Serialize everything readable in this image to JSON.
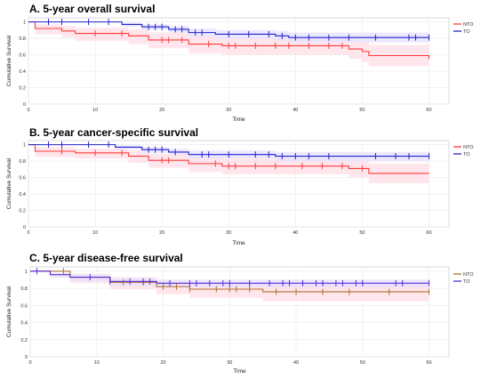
{
  "chart_data": [
    {
      "type": "line",
      "title": "A. 5-year overall survival",
      "xlabel": "Time",
      "ylabel": "Cumulative Survival",
      "xlim": [
        0,
        63
      ],
      "ylim": [
        0,
        1.05
      ],
      "x_ticks": [
        "0",
        "10",
        "20",
        "30",
        "40",
        "50",
        "60"
      ],
      "y_ticks": [
        "0",
        "0.2",
        "0.4",
        "0.6",
        "0.8",
        "1"
      ],
      "grid": true,
      "legend_position": "top-right",
      "series": [
        {
          "name": "NTO",
          "color": "#ff3b3b",
          "band_color": "#ffdde6",
          "steps": [
            [
              0,
              1.0
            ],
            [
              1,
              0.92
            ],
            [
              5,
              0.89
            ],
            [
              7,
              0.86
            ],
            [
              15,
              0.83
            ],
            [
              18,
              0.78
            ],
            [
              24,
              0.73
            ],
            [
              29,
              0.71
            ],
            [
              48,
              0.67
            ],
            [
              50,
              0.64
            ],
            [
              51,
              0.59
            ],
            [
              60,
              0.55
            ]
          ],
          "band_lower": [
            [
              0,
              1.0
            ],
            [
              1,
              0.85
            ],
            [
              5,
              0.81
            ],
            [
              7,
              0.77
            ],
            [
              15,
              0.73
            ],
            [
              18,
              0.68
            ],
            [
              24,
              0.62
            ],
            [
              29,
              0.6
            ],
            [
              48,
              0.55
            ],
            [
              50,
              0.51
            ],
            [
              51,
              0.46
            ],
            [
              60,
              0.42
            ]
          ],
          "band_upper": [
            [
              0,
              1.0
            ],
            [
              1,
              0.97
            ],
            [
              5,
              0.95
            ],
            [
              7,
              0.93
            ],
            [
              15,
              0.91
            ],
            [
              18,
              0.87
            ],
            [
              24,
              0.83
            ],
            [
              29,
              0.81
            ],
            [
              48,
              0.78
            ],
            [
              50,
              0.76
            ],
            [
              51,
              0.72
            ],
            [
              60,
              0.68
            ]
          ],
          "censored": [
            10,
            14,
            20,
            21,
            23,
            27,
            30,
            31,
            34,
            37,
            39,
            42,
            45,
            47
          ]
        },
        {
          "name": "TO",
          "color": "#2222cc",
          "band_color": "#e6e2ff",
          "steps": [
            [
              0,
              1.0
            ],
            [
              14,
              0.97
            ],
            [
              17,
              0.94
            ],
            [
              21,
              0.91
            ],
            [
              24,
              0.87
            ],
            [
              28,
              0.85
            ],
            [
              37,
              0.83
            ],
            [
              39,
              0.81
            ],
            [
              60,
              0.81
            ]
          ],
          "band_lower": [
            [
              0,
              1.0
            ],
            [
              14,
              0.94
            ],
            [
              17,
              0.9
            ],
            [
              21,
              0.87
            ],
            [
              24,
              0.82
            ],
            [
              28,
              0.79
            ],
            [
              37,
              0.77
            ],
            [
              39,
              0.75
            ],
            [
              60,
              0.75
            ]
          ],
          "band_upper": [
            [
              0,
              1.0
            ],
            [
              14,
              0.99
            ],
            [
              17,
              0.97
            ],
            [
              21,
              0.95
            ],
            [
              24,
              0.92
            ],
            [
              28,
              0.9
            ],
            [
              37,
              0.89
            ],
            [
              39,
              0.87
            ],
            [
              60,
              0.87
            ]
          ],
          "censored": [
            3,
            5,
            9,
            12,
            18,
            19,
            20,
            22,
            23,
            25,
            26,
            30,
            33,
            36,
            38,
            40,
            42,
            45,
            48,
            52,
            57,
            58,
            60
          ]
        }
      ]
    },
    {
      "type": "line",
      "title": "B. 5-year cancer-specific survival",
      "xlabel": "Time",
      "ylabel": "Cumulative Survival",
      "xlim": [
        0,
        63
      ],
      "ylim": [
        0,
        1.05
      ],
      "x_ticks": [
        "0",
        "10",
        "20",
        "30",
        "40",
        "50",
        "60"
      ],
      "y_ticks": [
        "0",
        "0.2",
        "0.4",
        "0.6",
        "0.8",
        "1"
      ],
      "grid": true,
      "legend_position": "top-right",
      "series": [
        {
          "name": "NTO",
          "color": "#ff3b3b",
          "band_color": "#ffdde6",
          "steps": [
            [
              0,
              1.0
            ],
            [
              1,
              0.92
            ],
            [
              7,
              0.9
            ],
            [
              15,
              0.86
            ],
            [
              18,
              0.81
            ],
            [
              24,
              0.77
            ],
            [
              29,
              0.74
            ],
            [
              48,
              0.71
            ],
            [
              51,
              0.65
            ],
            [
              60,
              0.65
            ]
          ],
          "band_lower": [
            [
              0,
              1.0
            ],
            [
              1,
              0.85
            ],
            [
              7,
              0.83
            ],
            [
              15,
              0.78
            ],
            [
              18,
              0.72
            ],
            [
              24,
              0.67
            ],
            [
              29,
              0.64
            ],
            [
              48,
              0.6
            ],
            [
              51,
              0.53
            ],
            [
              60,
              0.53
            ]
          ],
          "band_upper": [
            [
              0,
              1.0
            ],
            [
              1,
              0.97
            ],
            [
              7,
              0.95
            ],
            [
              15,
              0.93
            ],
            [
              18,
              0.89
            ],
            [
              24,
              0.86
            ],
            [
              29,
              0.83
            ],
            [
              48,
              0.81
            ],
            [
              51,
              0.77
            ],
            [
              60,
              0.77
            ]
          ],
          "censored": [
            5,
            10,
            14,
            20,
            21,
            28,
            30,
            31,
            34,
            37,
            41,
            44,
            47,
            50
          ]
        },
        {
          "name": "TO",
          "color": "#2222cc",
          "band_color": "#e6e2ff",
          "steps": [
            [
              0,
              1.0
            ],
            [
              13,
              0.97
            ],
            [
              17,
              0.94
            ],
            [
              21,
              0.91
            ],
            [
              24,
              0.88
            ],
            [
              37,
              0.86
            ],
            [
              60,
              0.86
            ]
          ],
          "band_lower": [
            [
              0,
              1.0
            ],
            [
              13,
              0.94
            ],
            [
              17,
              0.9
            ],
            [
              21,
              0.87
            ],
            [
              24,
              0.83
            ],
            [
              37,
              0.8
            ],
            [
              60,
              0.8
            ]
          ],
          "band_upper": [
            [
              0,
              1.0
            ],
            [
              13,
              0.99
            ],
            [
              17,
              0.97
            ],
            [
              21,
              0.95
            ],
            [
              24,
              0.93
            ],
            [
              37,
              0.91
            ],
            [
              60,
              0.91
            ]
          ],
          "censored": [
            3,
            5,
            9,
            12,
            18,
            19,
            20,
            22,
            26,
            27,
            30,
            34,
            36,
            38,
            40,
            42,
            45,
            52,
            55,
            57,
            60
          ]
        }
      ]
    },
    {
      "type": "line",
      "title": "C. 5-year disease-free survival",
      "xlabel": "Time",
      "ylabel": "Cumulative Survival",
      "xlim": [
        0,
        63
      ],
      "ylim": [
        0,
        1.05
      ],
      "x_ticks": [
        "0",
        "10",
        "20",
        "30",
        "40",
        "50",
        "60"
      ],
      "y_ticks": [
        "0",
        "0.2",
        "0.4",
        "0.6",
        "0.8",
        "1"
      ],
      "grid": true,
      "legend_position": "top-right",
      "series": [
        {
          "name": "NTO",
          "color": "#b07030",
          "band_color": "#ffdde6",
          "steps": [
            [
              0,
              1.0
            ],
            [
              6,
              0.93
            ],
            [
              12,
              0.87
            ],
            [
              19,
              0.82
            ],
            [
              24,
              0.79
            ],
            [
              35,
              0.76
            ],
            [
              60,
              0.76
            ]
          ],
          "band_lower": [
            [
              0,
              1.0
            ],
            [
              6,
              0.86
            ],
            [
              12,
              0.79
            ],
            [
              19,
              0.73
            ],
            [
              24,
              0.69
            ],
            [
              35,
              0.65
            ],
            [
              60,
              0.65
            ]
          ],
          "band_upper": [
            [
              0,
              1.0
            ],
            [
              6,
              0.97
            ],
            [
              12,
              0.93
            ],
            [
              19,
              0.89
            ],
            [
              24,
              0.87
            ],
            [
              35,
              0.85
            ],
            [
              60,
              0.85
            ]
          ],
          "censored": [
            5,
            14,
            17,
            20,
            22,
            24,
            28,
            30,
            31,
            33,
            37,
            40,
            44,
            48,
            54,
            60
          ]
        },
        {
          "name": "TO",
          "color": "#5a2ad6",
          "band_color": "#e6e2ff",
          "steps": [
            [
              0,
              1.0
            ],
            [
              3,
              0.96
            ],
            [
              6,
              0.93
            ],
            [
              12,
              0.88
            ],
            [
              19,
              0.86
            ],
            [
              60,
              0.86
            ]
          ],
          "band_lower": [
            [
              0,
              1.0
            ],
            [
              3,
              0.92
            ],
            [
              6,
              0.88
            ],
            [
              12,
              0.83
            ],
            [
              19,
              0.81
            ],
            [
              60,
              0.81
            ]
          ],
          "band_upper": [
            [
              0,
              1.0
            ],
            [
              3,
              0.98
            ],
            [
              6,
              0.96
            ],
            [
              12,
              0.92
            ],
            [
              19,
              0.9
            ],
            [
              60,
              0.9
            ]
          ],
          "censored": [
            1,
            9,
            12,
            15,
            17,
            18,
            21,
            24,
            25,
            27,
            29,
            30,
            33,
            36,
            38,
            39,
            41,
            43,
            44,
            46,
            47,
            49,
            50,
            55,
            56,
            60
          ]
        }
      ]
    }
  ]
}
